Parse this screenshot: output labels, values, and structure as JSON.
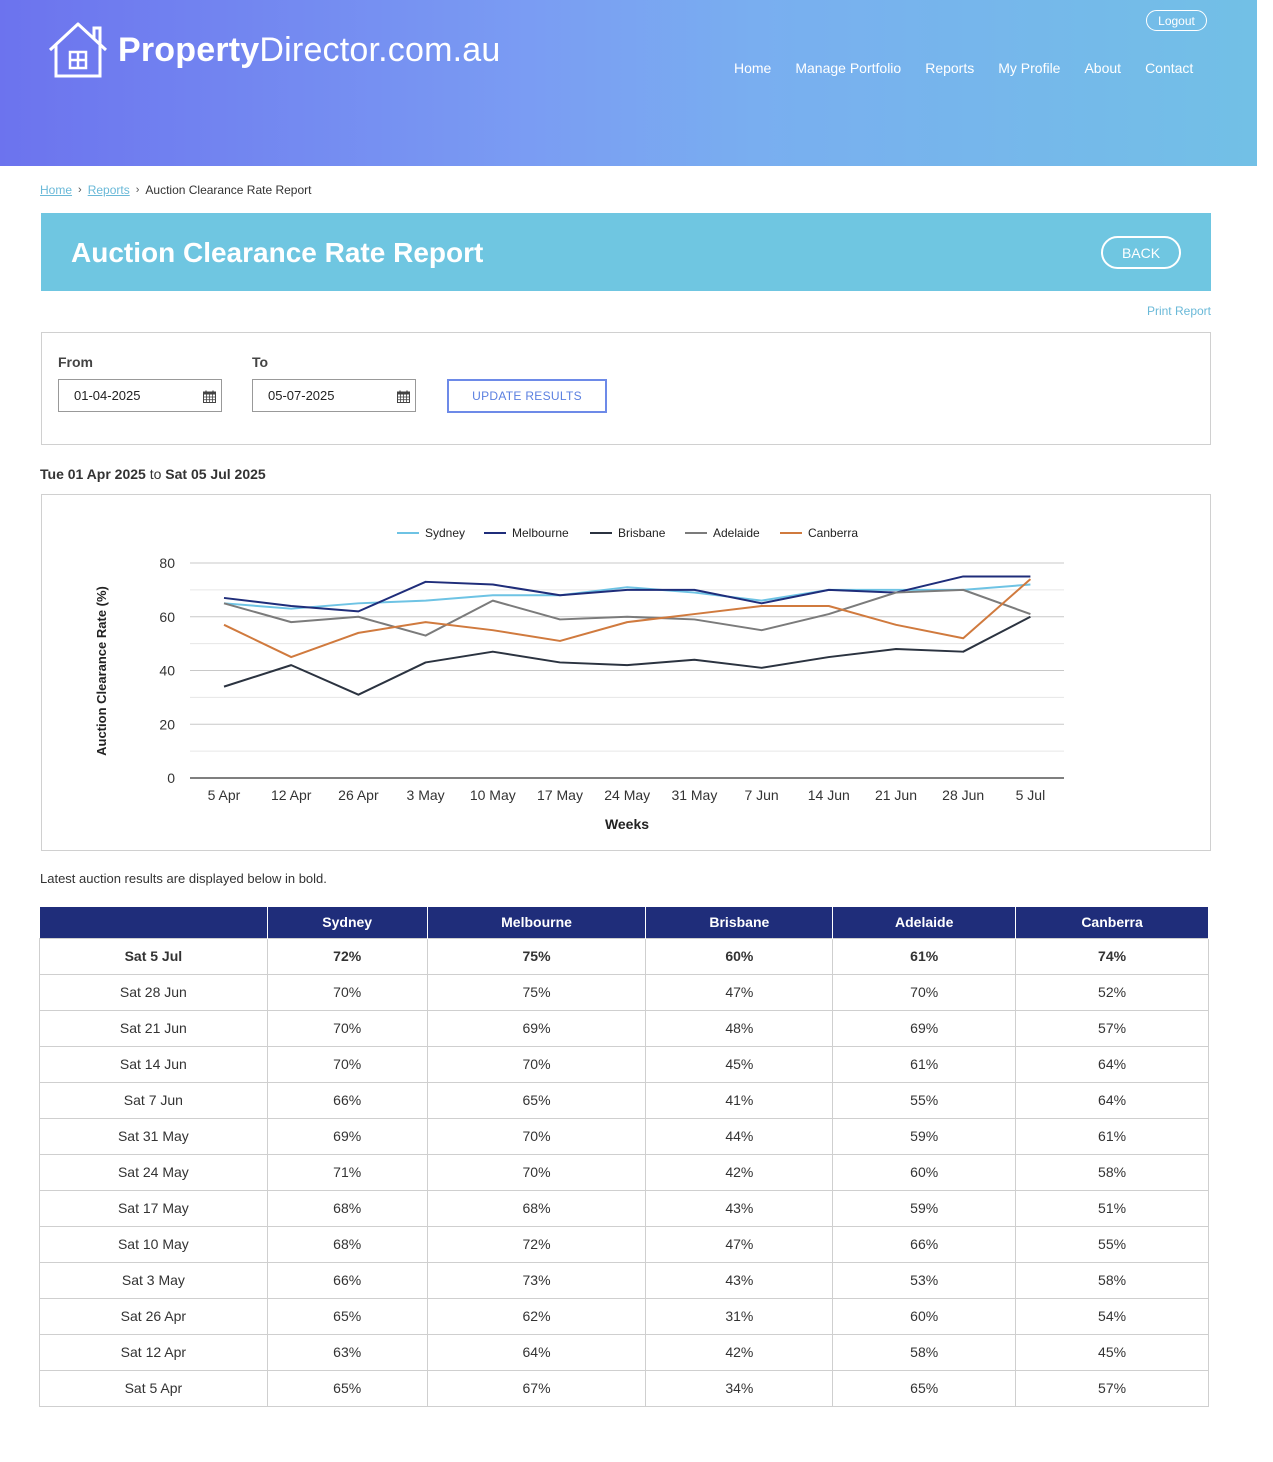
{
  "header": {
    "logo_bold": "Property",
    "logo_light": "Director.com.au",
    "logout": "Logout",
    "nav": [
      "Home",
      "Manage Portfolio",
      "Reports",
      "My Profile",
      "About",
      "Contact"
    ]
  },
  "breadcrumb": {
    "home": "Home",
    "reports": "Reports",
    "current": "Auction Clearance Rate Report"
  },
  "page": {
    "title": "Auction Clearance Rate Report",
    "back": "BACK",
    "print": "Print Report"
  },
  "filter": {
    "from_label": "From",
    "from_value": "01-04-2025",
    "to_label": "To",
    "to_value": "05-07-2025",
    "update": "UPDATE RESULTS"
  },
  "range": {
    "start": "Tue 01 Apr 2025",
    "connector": "to",
    "end": "Sat 05 Jul 2025"
  },
  "chart_data": {
    "type": "line",
    "xlabel": "Weeks",
    "ylabel": "Auction Clearance Rate (%)",
    "ylim": [
      0,
      80
    ],
    "yticks": [
      0,
      20,
      40,
      60,
      80
    ],
    "categories": [
      "5 Apr",
      "12 Apr",
      "26 Apr",
      "3 May",
      "10 May",
      "17 May",
      "24 May",
      "31 May",
      "7 Jun",
      "14 Jun",
      "21 Jun",
      "28 Jun",
      "5 Jul"
    ],
    "legend_position": "top",
    "grid": true,
    "series": [
      {
        "name": "Sydney",
        "color": "#6ec3e4",
        "values": [
          65,
          63,
          65,
          66,
          68,
          68,
          71,
          69,
          66,
          70,
          70,
          70,
          72
        ]
      },
      {
        "name": "Melbourne",
        "color": "#1f2d7a",
        "values": [
          67,
          64,
          62,
          73,
          72,
          68,
          70,
          70,
          65,
          70,
          69,
          75,
          75
        ]
      },
      {
        "name": "Brisbane",
        "color": "#2b3340",
        "values": [
          34,
          42,
          31,
          43,
          47,
          43,
          42,
          44,
          41,
          45,
          48,
          47,
          60
        ]
      },
      {
        "name": "Adelaide",
        "color": "#7b7b7b",
        "values": [
          65,
          58,
          60,
          53,
          66,
          59,
          60,
          59,
          55,
          61,
          69,
          70,
          61
        ]
      },
      {
        "name": "Canberra",
        "color": "#d07a3e",
        "values": [
          57,
          45,
          54,
          58,
          55,
          51,
          58,
          61,
          64,
          64,
          57,
          52,
          74
        ]
      }
    ]
  },
  "note": "Latest auction results are displayed below in bold.",
  "table": {
    "headers": [
      "",
      "Sydney",
      "Melbourne",
      "Brisbane",
      "Adelaide",
      "Canberra"
    ],
    "rows": [
      [
        "Sat 5 Jul",
        "72%",
        "75%",
        "60%",
        "61%",
        "74%"
      ],
      [
        "Sat 28 Jun",
        "70%",
        "75%",
        "47%",
        "70%",
        "52%"
      ],
      [
        "Sat 21 Jun",
        "70%",
        "69%",
        "48%",
        "69%",
        "57%"
      ],
      [
        "Sat 14 Jun",
        "70%",
        "70%",
        "45%",
        "61%",
        "64%"
      ],
      [
        "Sat 7 Jun",
        "66%",
        "65%",
        "41%",
        "55%",
        "64%"
      ],
      [
        "Sat 31 May",
        "69%",
        "70%",
        "44%",
        "59%",
        "61%"
      ],
      [
        "Sat 24 May",
        "71%",
        "70%",
        "42%",
        "60%",
        "58%"
      ],
      [
        "Sat 17 May",
        "68%",
        "68%",
        "43%",
        "59%",
        "51%"
      ],
      [
        "Sat 10 May",
        "68%",
        "72%",
        "47%",
        "66%",
        "55%"
      ],
      [
        "Sat 3 May",
        "66%",
        "73%",
        "43%",
        "53%",
        "58%"
      ],
      [
        "Sat 26 Apr",
        "65%",
        "62%",
        "31%",
        "60%",
        "54%"
      ],
      [
        "Sat 12 Apr",
        "63%",
        "64%",
        "42%",
        "58%",
        "45%"
      ],
      [
        "Sat 5 Apr",
        "65%",
        "67%",
        "34%",
        "65%",
        "57%"
      ]
    ]
  }
}
